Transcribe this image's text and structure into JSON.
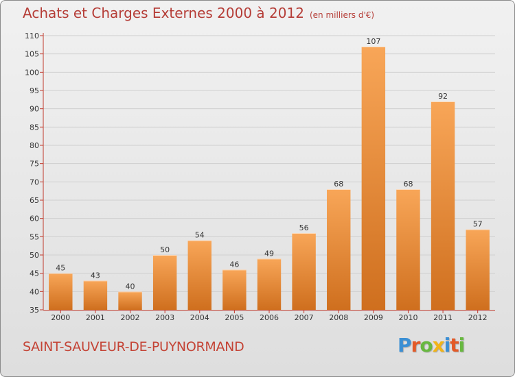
{
  "header": {
    "title": "Achats et Charges Externes 2000 à 2012",
    "subtitle": "(en milliers d'€)"
  },
  "footer": {
    "commune": "SAINT-SAUVEUR-DE-PUYNORMAND",
    "logo": "Proxiti"
  },
  "colors": {
    "bar_light": "#f8a658",
    "bar_dark": "#cf6f1e",
    "axis": "#c0392b",
    "title": "#b53d37",
    "logo_letters": [
      "#3b8fd4",
      "#e35a28",
      "#68b840",
      "#f2b418",
      "#3b8fd4",
      "#e35a28",
      "#68b840"
    ]
  },
  "chart_data": {
    "type": "bar",
    "categories": [
      "2000",
      "2001",
      "2002",
      "2003",
      "2004",
      "2005",
      "2006",
      "2007",
      "2008",
      "2009",
      "2010",
      "2011",
      "2012"
    ],
    "values": [
      45,
      43,
      40,
      50,
      54,
      46,
      49,
      56,
      68,
      107,
      68,
      92,
      57
    ],
    "ylim": [
      35,
      110
    ],
    "yticks": [
      35,
      40,
      45,
      50,
      55,
      60,
      65,
      70,
      75,
      80,
      85,
      90,
      95,
      100,
      105,
      110
    ],
    "grid": true,
    "data_labels": true
  }
}
